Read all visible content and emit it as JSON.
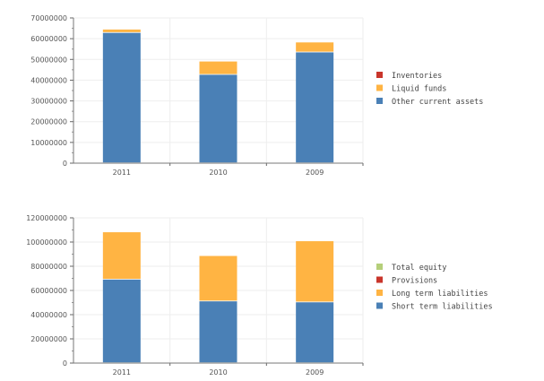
{
  "chart_data": [
    {
      "type": "bar",
      "stacked": true,
      "categories": [
        "2011",
        "2010",
        "2009"
      ],
      "ylim": [
        0,
        70000000
      ],
      "yticks": [
        "0",
        "10000000",
        "20000000",
        "30000000",
        "40000000",
        "50000000",
        "60000000",
        "70000000"
      ],
      "grid": true,
      "legend_position": "right",
      "series": [
        {
          "name": "Other current assets",
          "color": "#4a80b6",
          "values": [
            62800000,
            42600000,
            53400000
          ]
        },
        {
          "name": "Liquid funds",
          "color": "#ffb443",
          "values": [
            1600000,
            6400000,
            4800000
          ]
        },
        {
          "name": "Inventories",
          "color": "#c9352b",
          "values": [
            0,
            0,
            0
          ]
        }
      ]
    },
    {
      "type": "bar",
      "stacked": true,
      "categories": [
        "2011",
        "2010",
        "2009"
      ],
      "ylim": [
        0,
        120000000
      ],
      "yticks": [
        "0",
        "20000000",
        "40000000",
        "60000000",
        "80000000",
        "100000000",
        "120000000"
      ],
      "grid": true,
      "legend_position": "right",
      "series": [
        {
          "name": "Short term liabilities",
          "color": "#4a80b6",
          "values": [
            69000000,
            51000000,
            50200000
          ]
        },
        {
          "name": "Long term liabilities",
          "color": "#ffb443",
          "values": [
            39100000,
            37500000,
            50500000
          ]
        },
        {
          "name": "Provisions",
          "color": "#c9352b",
          "values": [
            0,
            0,
            0
          ]
        },
        {
          "name": "Total equity",
          "color": "#b5cf7a",
          "values": [
            0,
            0,
            0
          ]
        }
      ]
    }
  ]
}
